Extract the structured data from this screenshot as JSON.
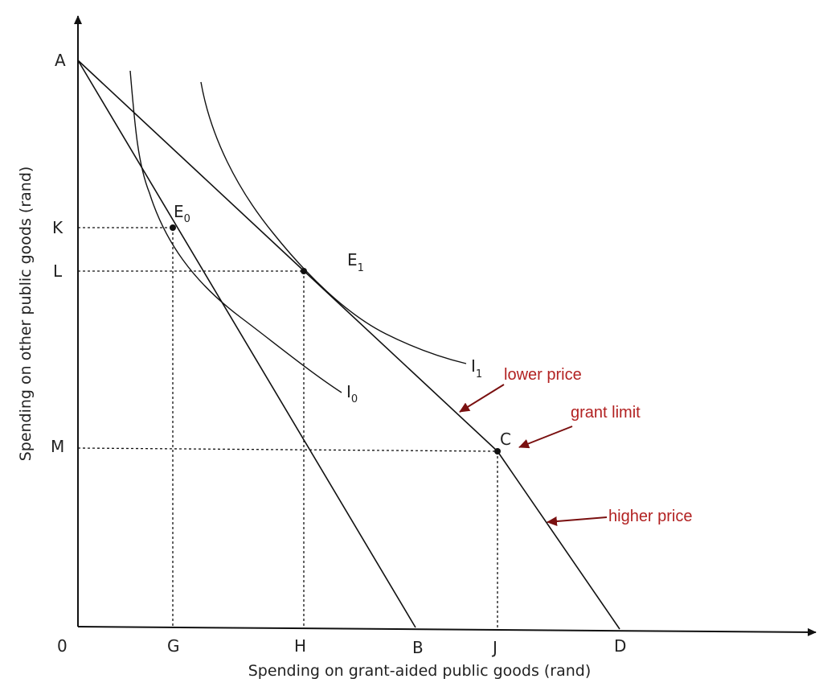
{
  "axes": {
    "x_title": "Spending on grant-aided public goods (rand)",
    "y_title": "Spending on other public goods (rand)",
    "origin": "0"
  },
  "y_labels": {
    "A": "A",
    "K": "K",
    "L": "L",
    "M": "M"
  },
  "x_labels": {
    "G": "G",
    "H": "H",
    "B": "B",
    "J": "J",
    "D": "D"
  },
  "points": {
    "E0": {
      "letter": "E",
      "sub": "0"
    },
    "E1": {
      "letter": "E",
      "sub": "1"
    },
    "C": "C"
  },
  "curves": {
    "I0": {
      "letter": "I",
      "sub": "0"
    },
    "I1": {
      "letter": "I",
      "sub": "1"
    }
  },
  "annotations": {
    "lower_price": "lower price",
    "grant_limit": "grant limit",
    "higher_price": "higher price"
  },
  "colors": {
    "annotation": "#b22222",
    "arrow": "#7a1010",
    "ink": "#111111"
  }
}
